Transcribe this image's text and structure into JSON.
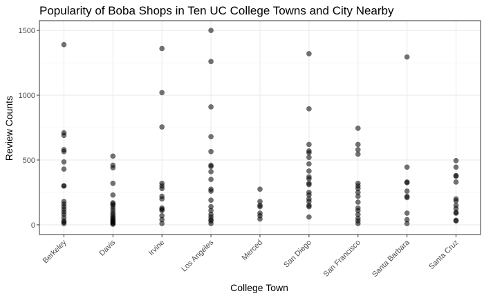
{
  "chart_data": {
    "type": "scatter",
    "title": "Popularity of Boba Shops in Ten UC College Towns and City Nearby",
    "xlabel": "College Town",
    "ylabel": "Review Counts",
    "categories": [
      "Berkeley",
      "Davis",
      "Irvine",
      "Los Angeles",
      "Merced",
      "San Diego",
      "San Francisco",
      "Santa Barbara",
      "Santa Cruz"
    ],
    "y_ticks": [
      0,
      500,
      1000,
      1500
    ],
    "ylim": [
      -75,
      1575
    ],
    "grid": true,
    "point_color": "#000000",
    "points": {
      "Berkeley": [
        1390,
        710,
        690,
        580,
        565,
        485,
        430,
        300,
        300,
        180,
        160,
        140,
        120,
        100,
        80,
        55,
        30,
        20,
        10
      ],
      "Davis": [
        530,
        460,
        440,
        320,
        230,
        170,
        160,
        150,
        130,
        110,
        90,
        75,
        60,
        50,
        40,
        30,
        25,
        15,
        10,
        5
      ],
      "Irvine": [
        1360,
        1020,
        755,
        320,
        300,
        280,
        220,
        200,
        130,
        120,
        110,
        70,
        40,
        10
      ],
      "Los Angeles": [
        1500,
        1260,
        910,
        680,
        565,
        460,
        450,
        410,
        350,
        275,
        260,
        190,
        140,
        110,
        80,
        60,
        40,
        30,
        10
      ],
      "Merced": [
        275,
        180,
        150,
        140,
        90,
        70,
        45
      ],
      "San Diego": [
        1320,
        895,
        620,
        570,
        555,
        520,
        470,
        415,
        370,
        355,
        320,
        310,
        250,
        230,
        200,
        180,
        150,
        140,
        60
      ],
      "San Francisco": [
        745,
        620,
        580,
        545,
        320,
        300,
        280,
        250,
        220,
        175,
        130,
        110,
        80,
        50,
        30,
        10
      ],
      "Santa Barbara": [
        1295,
        445,
        330,
        325,
        260,
        220,
        210,
        90,
        40,
        10
      ],
      "Santa Cruz": [
        495,
        445,
        380,
        375,
        330,
        200,
        185,
        150,
        125,
        95,
        90,
        35,
        30
      ]
    }
  }
}
